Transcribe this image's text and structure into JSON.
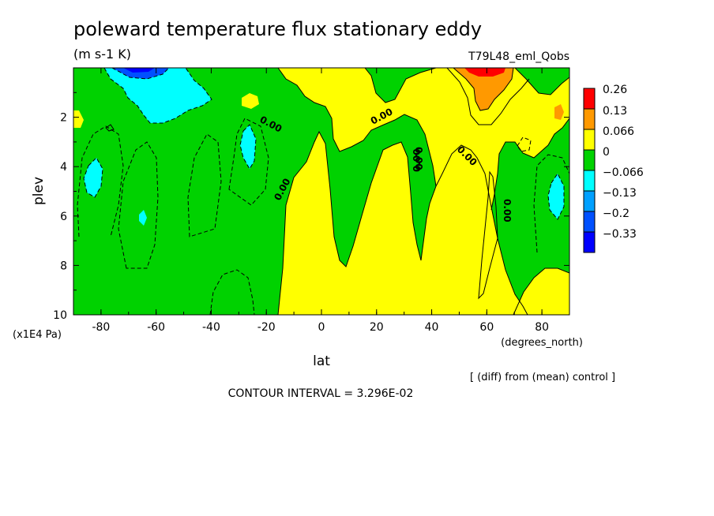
{
  "chart_data": {
    "type": "heatmap",
    "title": "poleward temperature flux stationary eddy",
    "units": "(m s-1 K)",
    "experiment": "T79L48_eml_Qobs",
    "xlabel": "lat",
    "ylabel": "plev",
    "x_unit_label": "(degrees_north)",
    "y_unit_label": "(x1E4 Pa)",
    "xlim": [
      -90,
      90
    ],
    "ylim": [
      10,
      0
    ],
    "x_ticks": [
      "-80",
      "-60",
      "-40",
      "-20",
      "0",
      "20",
      "40",
      "60",
      "80"
    ],
    "y_ticks": [
      "2",
      "4",
      "6",
      "8",
      "10"
    ],
    "colorbar_levels": [
      "0.26",
      "0.13",
      "0.066",
      "0",
      "−0.066",
      "−0.13",
      "−0.2",
      "−0.33"
    ],
    "colorbar_colors": [
      "#ff0000",
      "#ff9900",
      "#ffff00",
      "#00d200",
      "#00ffff",
      "#00a0ff",
      "#0050ff",
      "#0000ff"
    ],
    "contour_labels": [
      "0.00",
      "0.00",
      "0.00",
      "0.00",
      "0.00",
      "0.00",
      "0.00"
    ],
    "contour_interval_text": "CONTOUR INTERVAL = 3.296E-02",
    "diff_note": "[ (diff) from (mean) control ]"
  }
}
